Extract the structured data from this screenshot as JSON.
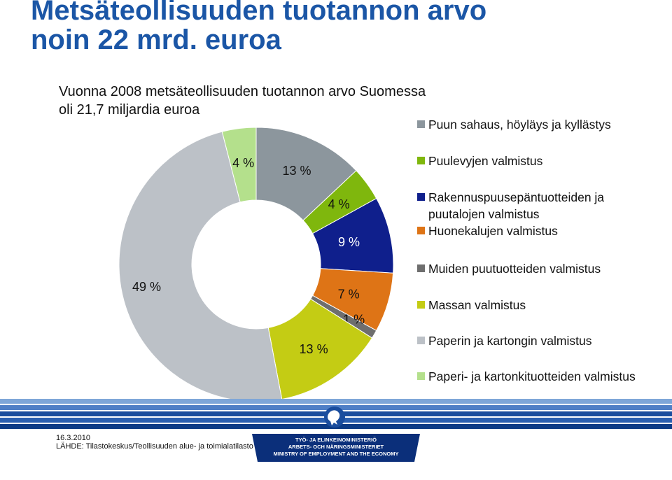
{
  "slide": {
    "title_line1": "Metsäteollisuuden tuotannon arvo",
    "title_line2": "noin 22 mrd. euroa",
    "subtitle_line1": "Vuonna 2008 metsäteollisuuden tuotannon arvo Suomessa",
    "subtitle_line2": "oli 21,7 miljardia euroa"
  },
  "chart_data": {
    "type": "pie",
    "variant": "donut",
    "title": "",
    "categories": [
      "Puun sahaus, höyläys ja kyllästys",
      "Puulevyjen valmistus",
      "Rakennuspuusepäntuotteiden ja\npuutalojen valmistus",
      "Huonekalujen valmistus",
      "Muiden puutuotteiden valmistus",
      "Massan valmistus",
      "Paperin ja kartongin valmistus",
      "Paperi- ja kartonkituotteiden valmistus"
    ],
    "values": [
      13,
      4,
      9,
      7,
      1,
      13,
      49,
      4
    ],
    "data_labels": [
      "13 %",
      "4 %",
      "9 %",
      "7 %",
      "1 %",
      "13 %",
      "49 %",
      "4 %"
    ],
    "colors": [
      "#8c969d",
      "#7fb70d",
      "#0f1f8c",
      "#de7416",
      "#6e6e6e",
      "#c4cc14",
      "#bcc1c7",
      "#b4e08c"
    ],
    "legend_position": "right",
    "start_angle_deg": 0,
    "direction": "clockwise"
  },
  "footer": {
    "date": "16.3.2010",
    "source": "LÄHDE: Tilastokeskus/Teollisuuden alue- ja toimialatilasto",
    "ministry_fi": "TYÖ- JA ELINKEINOMINISTERIÖ",
    "ministry_sv": "ARBETS- OCH NÄRINGSMINISTERIET",
    "ministry_en": "MINISTRY OF EMPLOYMENT AND THE ECONOMY",
    "bar_colors": [
      "#7ea6d8",
      "#4f7fc6",
      "#1a4d9e",
      "#2a5fb0",
      "#0c3b86"
    ]
  }
}
